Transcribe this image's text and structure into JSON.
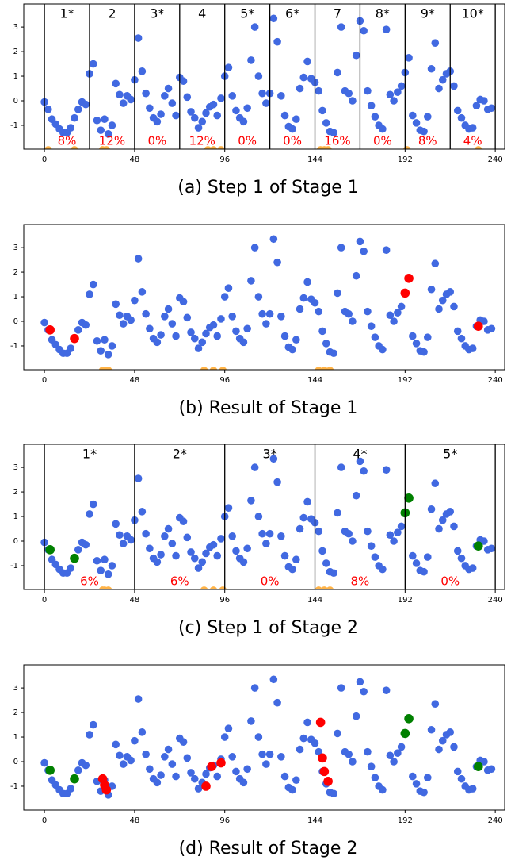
{
  "chart_data": {
    "type": "scatter",
    "x": [
      0,
      2,
      4,
      6,
      8,
      10,
      12,
      14,
      16,
      18,
      20,
      22,
      24,
      26,
      28,
      30,
      32,
      34,
      36,
      38,
      40,
      42,
      44,
      46,
      48,
      50,
      52,
      54,
      56,
      58,
      60,
      62,
      64,
      66,
      68,
      70,
      72,
      74,
      76,
      78,
      80,
      82,
      84,
      86,
      88,
      90,
      92,
      94,
      96,
      98,
      100,
      102,
      104,
      106,
      108,
      110,
      112,
      114,
      116,
      118,
      120,
      122,
      124,
      126,
      128,
      130,
      132,
      134,
      136,
      138,
      140,
      142,
      144,
      146,
      148,
      150,
      152,
      154,
      156,
      158,
      160,
      162,
      164,
      166,
      168,
      170,
      172,
      174,
      176,
      178,
      180,
      182,
      184,
      186,
      188,
      190,
      192,
      194,
      196,
      198,
      200,
      202,
      204,
      206,
      208,
      210,
      212,
      214,
      216,
      218,
      220,
      222,
      224,
      226,
      228,
      230,
      232,
      234,
      236,
      238
    ],
    "values": [
      -0.05,
      -0.35,
      -0.75,
      -0.95,
      -1.15,
      -1.3,
      -1.3,
      -1.1,
      -0.7,
      -0.35,
      -0.05,
      -0.15,
      1.1,
      1.5,
      -0.8,
      -1.2,
      -0.75,
      -1.35,
      -1.0,
      0.7,
      0.25,
      -0.1,
      0.2,
      0.05,
      0.85,
      2.55,
      1.2,
      0.3,
      -0.3,
      -0.7,
      -0.85,
      -0.55,
      0.2,
      0.5,
      -0.1,
      -0.6,
      0.95,
      0.8,
      0.15,
      -0.45,
      -0.7,
      -1.1,
      -0.85,
      -0.5,
      -0.25,
      -0.15,
      -0.6,
      0.1,
      1.0,
      1.35,
      0.2,
      -0.4,
      -0.7,
      -0.85,
      -0.3,
      1.65,
      3.0,
      1.0,
      0.3,
      -0.1,
      0.3,
      3.35,
      2.4,
      0.2,
      -0.6,
      -1.05,
      -1.15,
      -0.75,
      0.5,
      0.95,
      1.6,
      0.9,
      0.75,
      0.4,
      -0.4,
      -0.9,
      -1.25,
      -1.3,
      1.15,
      3.0,
      0.4,
      0.3,
      0.0,
      1.85,
      3.25,
      2.85,
      0.4,
      -0.2,
      -0.65,
      -1.0,
      -1.15,
      2.9,
      0.25,
      0.0,
      0.35,
      0.6,
      1.15,
      1.75,
      -0.6,
      -0.9,
      -1.2,
      -1.25,
      -0.65,
      1.3,
      2.35,
      0.5,
      0.85,
      1.1,
      1.2,
      0.6,
      -0.4,
      -0.7,
      -1.0,
      -1.15,
      -1.1,
      -0.2,
      0.05,
      0.0,
      -0.35,
      -0.3
    ],
    "color": "#4169e1",
    "xlim": [
      -11,
      245
    ],
    "ylim": [
      -1.97,
      3.94
    ],
    "xticks": [
      0,
      48,
      96,
      144,
      192,
      240
    ],
    "yticks": [
      -1,
      0,
      1,
      2,
      3
    ],
    "panels": [
      {
        "caption": "(a) Step 1 of Stage 1",
        "windows": {
          "bounds": [
            0,
            24,
            48,
            72,
            96,
            120,
            144,
            168,
            192,
            216,
            240
          ],
          "labels": [
            "1*",
            "2",
            "3*",
            "4",
            "5*",
            "6*",
            "7",
            "8*",
            "9*",
            "10*"
          ],
          "rates": [
            8,
            12,
            0,
            12,
            0,
            0,
            16,
            0,
            8,
            4
          ],
          "rate_labels": [
            "8%",
            "12%",
            "0%",
            "12%",
            "0%",
            "0%",
            "16%",
            "0%",
            "8%",
            "4%"
          ]
        },
        "flags": {
          "color": "#ffb347",
          "y": -2,
          "x": [
            2,
            16,
            31,
            33,
            87,
            90,
            94,
            147,
            149,
            151,
            193,
            231
          ]
        },
        "points": []
      },
      {
        "caption": "(b) Result of Stage 1",
        "flags": {
          "color": "#ffb347",
          "y": -2,
          "x": [
            31,
            32,
            34,
            85,
            90,
            95,
            146,
            149,
            152
          ]
        },
        "points": [
          {
            "color": "#ff0000",
            "x": [
              3,
              16,
              194,
              192,
              231
            ],
            "values": [
              -0.35,
              -0.7,
              1.75,
              1.15,
              -0.2
            ]
          }
        ]
      },
      {
        "caption": "(c) Step 1 of Stage 2",
        "windows": {
          "bounds": [
            0,
            48,
            96,
            144,
            192,
            240
          ],
          "labels": [
            "1*",
            "2*",
            "3*",
            "4*",
            "5*"
          ],
          "rates": [
            6,
            6,
            0,
            8,
            0
          ],
          "rate_labels": [
            "6%",
            "6%",
            "0%",
            "8%",
            "0%"
          ]
        },
        "flags": {
          "color": "#ffb347",
          "y": -2,
          "x": [
            31,
            32,
            34,
            85,
            90,
            95,
            146,
            149,
            152
          ]
        },
        "points": [
          {
            "color": "#008000",
            "x": [
              3,
              16,
              194,
              192,
              231
            ],
            "values": [
              -0.35,
              -0.7,
              1.75,
              1.15,
              -0.2
            ]
          }
        ]
      },
      {
        "caption": "(d) Result of Stage 2",
        "points": [
          {
            "color": "#008000",
            "x": [
              3,
              16,
              194,
              192,
              231
            ],
            "values": [
              -0.35,
              -0.7,
              1.75,
              1.15,
              -0.2
            ]
          },
          {
            "color": "#ff0000",
            "x": [
              31,
              32,
              33,
              86,
              89,
              94,
              147,
              148,
              149,
              151
            ],
            "values": [
              -0.7,
              -0.95,
              -1.15,
              -1.0,
              -0.2,
              -0.05,
              1.6,
              0.15,
              -0.4,
              -0.8
            ]
          }
        ]
      }
    ]
  }
}
